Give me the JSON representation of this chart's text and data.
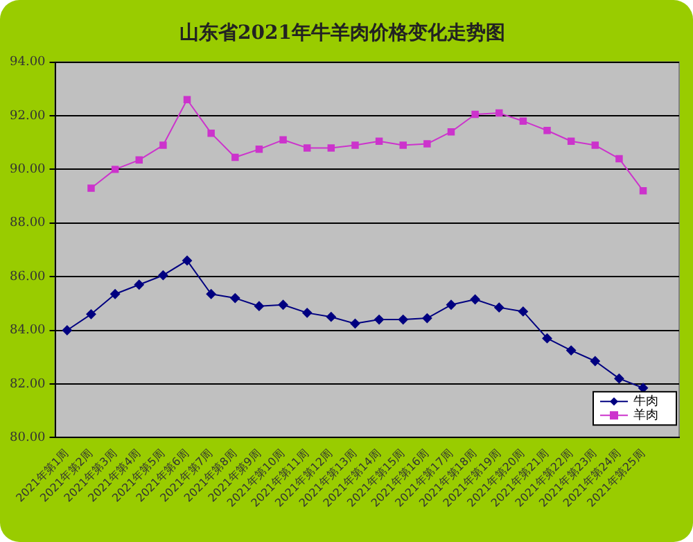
{
  "chart_data": {
    "type": "line",
    "title": "山东省2021年牛羊肉价格变化走势图",
    "categories": [
      "2021年第1周",
      "2021年第2周",
      "2021年第3周",
      "2021年第4周",
      "2021年第5周",
      "2021年第6周",
      "2021年第7周",
      "2021年第8周",
      "2021年第9周",
      "2021年第10周",
      "2021年第11周",
      "2021年第12周",
      "2021年第13周",
      "2021年第14周",
      "2021年第15周",
      "2021年第16周",
      "2021年第17周",
      "2021年第18周",
      "2021年第19周",
      "2021年第20周",
      "2021年第21周",
      "2021年第22周",
      "2021年第23周",
      "2021年第24周",
      "2021年第25周",
      null
    ],
    "series": [
      {
        "name": "牛肉",
        "color": "#000080",
        "marker": "diamond",
        "values": [
          84.0,
          84.6,
          85.35,
          85.7,
          86.05,
          86.6,
          85.35,
          85.2,
          84.9,
          84.95,
          84.65,
          84.5,
          84.25,
          84.4,
          84.4,
          84.45,
          84.95,
          85.15,
          84.85,
          84.7,
          83.7,
          83.25,
          82.85,
          82.2,
          81.85,
          null
        ]
      },
      {
        "name": "羊肉",
        "color": "#cc33cc",
        "marker": "square",
        "values": [
          null,
          89.3,
          90.0,
          90.35,
          90.9,
          92.6,
          91.35,
          90.45,
          90.75,
          91.1,
          90.8,
          90.8,
          90.9,
          91.05,
          90.9,
          90.95,
          91.4,
          92.05,
          92.1,
          91.8,
          91.45,
          91.05,
          90.9,
          90.4,
          89.2,
          null
        ]
      }
    ],
    "ylim": [
      80,
      94
    ],
    "yticks": [
      {
        "value": 80,
        "label": "80.00"
      },
      {
        "value": 82,
        "label": "82.00"
      },
      {
        "value": 84,
        "label": "84.00"
      },
      {
        "value": 86,
        "label": "86.00"
      },
      {
        "value": 88,
        "label": "88.00"
      },
      {
        "value": 90,
        "label": "90.00"
      },
      {
        "value": 92,
        "label": "92.00"
      },
      {
        "value": 94,
        "label": "94.00"
      }
    ],
    "grid": "y",
    "legend": "bottom right",
    "line_style": "solid"
  }
}
